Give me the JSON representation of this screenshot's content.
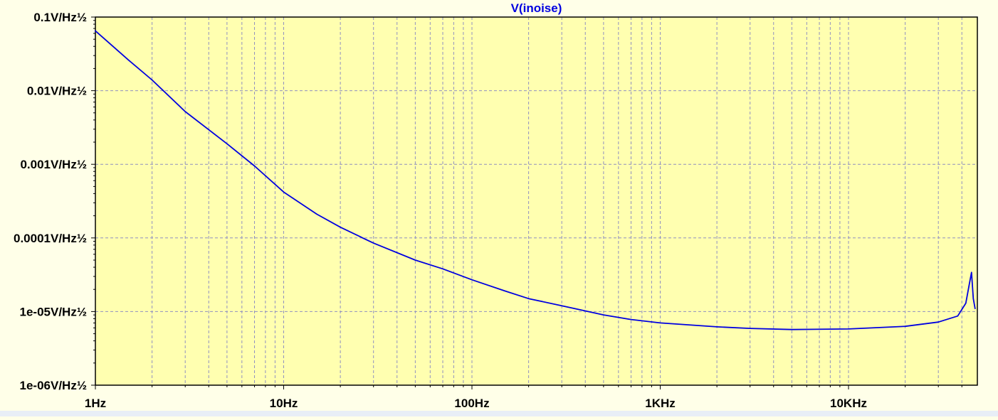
{
  "colors": {
    "background": "#ffffe8",
    "plot_area": "#ffffb0",
    "grid": "#9090c0",
    "trace": "#0000e0",
    "title": "#0000e0",
    "axis": "#000000"
  },
  "chart_data": {
    "type": "line",
    "title": "V(inoise)",
    "xlabel": "",
    "ylabel": "",
    "x_scale": "log",
    "y_scale": "log",
    "x_unit": "Hz",
    "y_unit": "V/Hz½",
    "xlim": [
      1,
      47000
    ],
    "ylim": [
      1e-06,
      0.1
    ],
    "grid": true,
    "x_ticks": [
      {
        "value": 1,
        "label": "1Hz"
      },
      {
        "value": 10,
        "label": "10Hz"
      },
      {
        "value": 100,
        "label": "100Hz"
      },
      {
        "value": 1000,
        "label": "1KHz"
      },
      {
        "value": 10000,
        "label": "10KHz"
      }
    ],
    "y_ticks": [
      {
        "value": 0.1,
        "label": "0.1V/Hz½"
      },
      {
        "value": 0.01,
        "label": "0.01V/Hz½"
      },
      {
        "value": 0.001,
        "label": "0.001V/Hz½"
      },
      {
        "value": 0.0001,
        "label": "0.0001V/Hz½"
      },
      {
        "value": 1e-05,
        "label": "1e-05V/Hz½"
      },
      {
        "value": 1e-06,
        "label": "1e-06V/Hz½"
      }
    ],
    "series": [
      {
        "name": "V(inoise)",
        "x": [
          1,
          1.5,
          2,
          3,
          5,
          7,
          10,
          15,
          20,
          30,
          50,
          70,
          100,
          150,
          200,
          300,
          500,
          700,
          1000,
          2000,
          3000,
          5000,
          10000,
          20000,
          30000,
          38000,
          42000,
          44000,
          45000,
          46000,
          47000
        ],
        "y": [
          0.065,
          0.026,
          0.014,
          0.0052,
          0.0019,
          0.00095,
          0.00042,
          0.00021,
          0.00014,
          8.5e-05,
          5e-05,
          3.8e-05,
          2.7e-05,
          1.9e-05,
          1.5e-05,
          1.2e-05,
          9e-06,
          7.8e-06,
          7e-06,
          6.2e-06,
          5.9e-06,
          5.7e-06,
          5.8e-06,
          6.3e-06,
          7.2e-06,
          8.7e-06,
          1.3e-05,
          2.5e-05,
          3.4e-05,
          1.5e-05,
          1.1e-05
        ]
      }
    ]
  }
}
